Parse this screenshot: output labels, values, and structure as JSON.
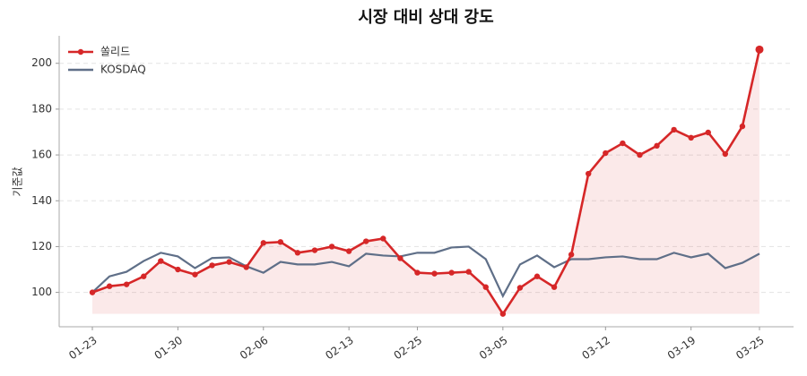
{
  "chart_data": {
    "type": "line",
    "title": "시장 대비 상대 강도",
    "y_label": "기준값",
    "categories": [
      "01-23",
      null,
      null,
      null,
      null,
      "01-30",
      null,
      null,
      null,
      null,
      "02-06",
      null,
      null,
      null,
      null,
      "02-13",
      null,
      null,
      null,
      "02-25",
      null,
      null,
      null,
      null,
      "03-05",
      null,
      null,
      null,
      null,
      null,
      "03-12",
      null,
      null,
      null,
      null,
      "03-19",
      null,
      null,
      null,
      "03-25"
    ],
    "series": [
      {
        "name": "쏠리드",
        "color": "#d62728",
        "marker": true,
        "fill": true,
        "values": [
          100,
          102.7,
          103.5,
          107,
          113.7,
          110,
          107.8,
          111.8,
          113.3,
          111,
          121.6,
          122,
          117.3,
          118.4,
          120,
          118,
          122.3,
          123.5,
          114.9,
          108.6,
          108.2,
          108.6,
          109,
          102.3,
          90.6,
          102,
          107,
          102.3,
          116.5,
          151.8,
          160.8,
          165.1,
          160,
          164,
          171,
          167.5,
          169.8,
          160.4,
          172.5,
          206
        ]
      },
      {
        "name": "KOSDAQ",
        "color": "#5f6f88",
        "marker": false,
        "fill": false,
        "values": [
          100,
          107,
          109,
          113.7,
          117.3,
          115.7,
          110.6,
          115,
          115.3,
          111.4,
          108.6,
          113.3,
          112.2,
          112.2,
          113.3,
          111.4,
          116.9,
          116.1,
          115.7,
          117.3,
          117.3,
          119.6,
          120,
          114.5,
          98.4,
          112.2,
          116.1,
          111,
          114.5,
          114.5,
          115.3,
          115.7,
          114.5,
          114.5,
          117.3,
          115.3,
          116.9,
          110.6,
          112.9,
          116.9
        ]
      }
    ],
    "ylim": [
      85,
      212
    ],
    "yticks": [
      100,
      120,
      140,
      160,
      180,
      200
    ],
    "grid": true,
    "legend": "upper left"
  }
}
